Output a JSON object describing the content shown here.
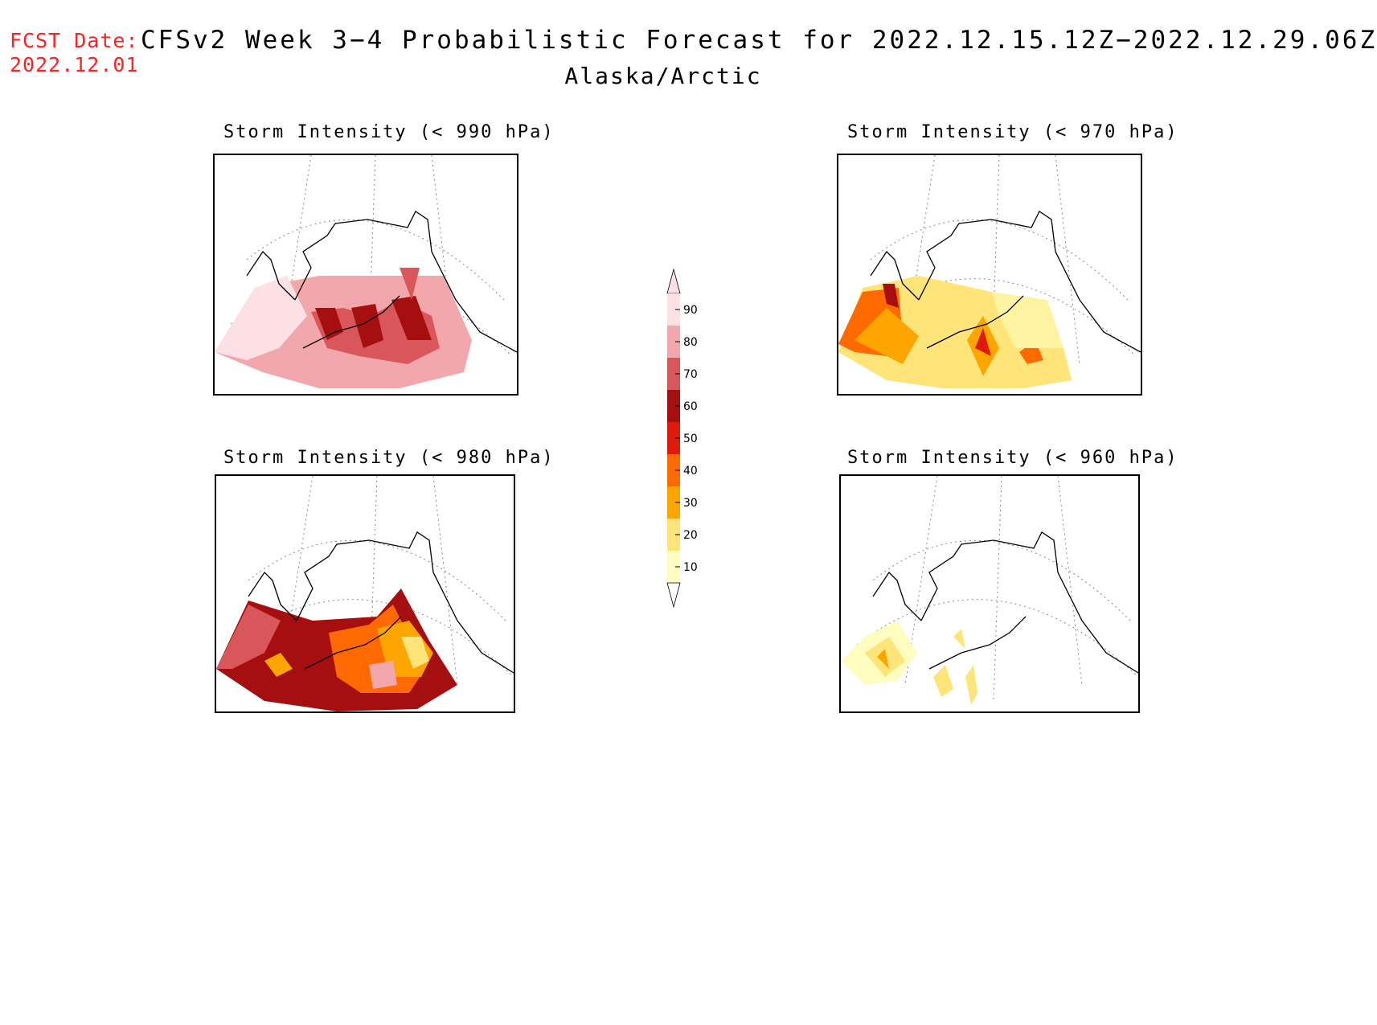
{
  "header": {
    "fcst_label": "FCST Date:",
    "fcst_date": "2022.12.01",
    "title": "CFSv2 Week 3−4 Probabilistic Forecast for 2022.12.15.12Z−2022.12.29.06Z",
    "region": "Alaska/Arctic"
  },
  "panels": [
    {
      "title": "Storm Intensity (< 990 hPa)",
      "level_hpa": 990,
      "dominant_category": "70-90"
    },
    {
      "title": "Storm Intensity (< 970 hPa)",
      "level_hpa": 970,
      "dominant_category": "20-50"
    },
    {
      "title": "Storm Intensity (< 980 hPa)",
      "level_hpa": 980,
      "dominant_category": "30-70"
    },
    {
      "title": "Storm Intensity (< 960 hPa)",
      "level_hpa": 960,
      "dominant_category": "10-30"
    }
  ],
  "colorbar": {
    "ticks": [
      "90",
      "80",
      "70",
      "60",
      "50",
      "40",
      "30",
      "20",
      "10"
    ],
    "colors": [
      "#fde0e3",
      "#f2a7ac",
      "#d9575a",
      "#a50f0f",
      "#e01a0a",
      "#ff6a00",
      "#ffa500",
      "#ffe47a",
      "#fffcc0"
    ]
  }
}
